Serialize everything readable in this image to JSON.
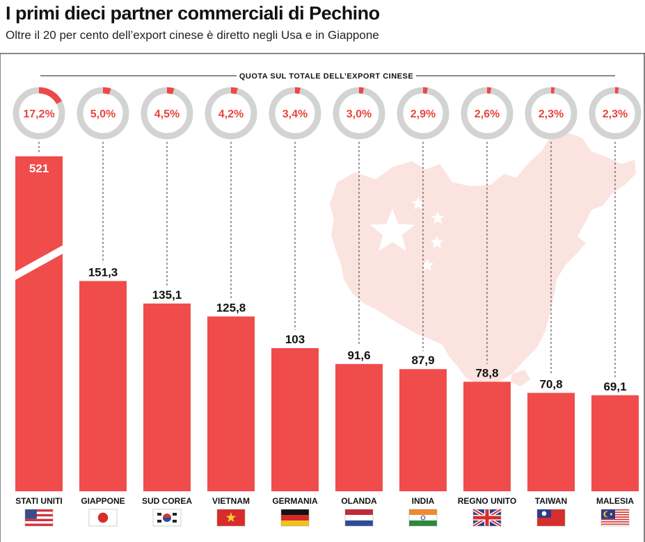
{
  "header": {
    "title": "I primi dieci partner commerciali di Pechino",
    "subtitle": "Oltre il 20 per cento dell’export cinese è diretto negli Usa e in Giappone"
  },
  "chart_data": {
    "type": "bar",
    "title": "I primi dieci partner commerciali di Pechino",
    "subtitle": "Oltre il 20 per cento dell’export cinese è diretto negli Usa e in Giappone",
    "share_label": "QUOTA SUL TOTALE DELL’EXPORT CINESE",
    "categories": [
      "STATI UNITI",
      "GIAPPONE",
      "SUD COREA",
      "VIETNAM",
      "GERMANIA",
      "OLANDA",
      "INDIA",
      "REGNO UNITO",
      "TAIWAN",
      "MALESIA"
    ],
    "values": [
      521,
      151.3,
      135.1,
      125.8,
      103,
      91.6,
      87.9,
      78.8,
      70.8,
      69.1
    ],
    "value_labels": [
      "521",
      "151,3",
      "135,1",
      "125,8",
      "103",
      "91,6",
      "87,9",
      "78,8",
      "70,8",
      "69,1"
    ],
    "shares": [
      17.2,
      5.0,
      4.5,
      4.2,
      3.4,
      3.0,
      2.9,
      2.6,
      2.3,
      2.3
    ],
    "share_labels": [
      "17,2%",
      "5,0%",
      "4,5%",
      "4,2%",
      "3,4%",
      "3,0%",
      "2,9%",
      "2,6%",
      "2,3%",
      "2,3%"
    ],
    "flags": [
      "flag-usa",
      "flag-japan",
      "flag-south-korea",
      "flag-vietnam",
      "flag-germany",
      "flag-netherlands",
      "flag-india",
      "flag-uk",
      "flag-taiwan",
      "flag-malaysia"
    ],
    "broken_axis_values": [
      "521"
    ],
    "xlabel": "",
    "ylabel": "",
    "ylim": [
      0,
      200
    ],
    "colors": {
      "bar": "#f04c4c",
      "donut_track": "#d3d3d3",
      "donut_fill": "#ee4848",
      "share_text": "#e8453f",
      "map": "#fbe3df"
    }
  }
}
